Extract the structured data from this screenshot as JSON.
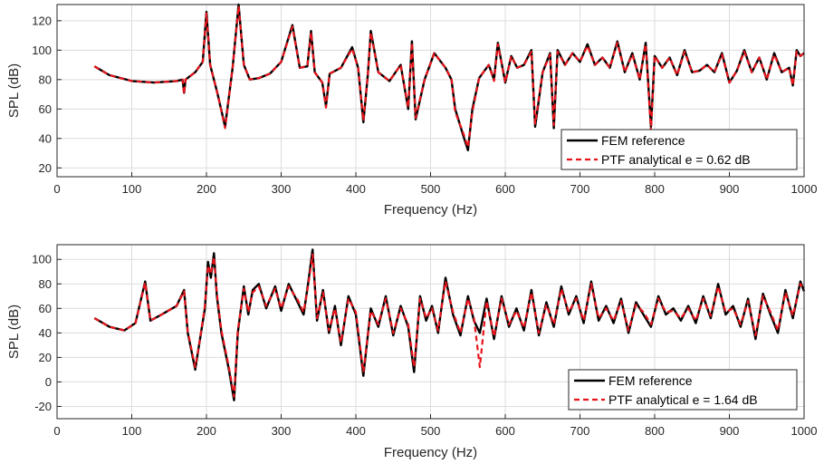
{
  "chart_data": [
    {
      "type": "line",
      "xlabel": "Frequency (Hz)",
      "ylabel": "SPL (dB)",
      "xlim": [
        0,
        1000
      ],
      "ylim": [
        14,
        131
      ],
      "xticks": [
        0,
        100,
        200,
        300,
        400,
        500,
        600,
        700,
        800,
        900,
        1000
      ],
      "yticks": [
        20,
        40,
        60,
        80,
        100,
        120
      ],
      "grid": true,
      "legend_position": "bottom-right",
      "colors": {
        "reference": "#000000",
        "analytical": "#e8141b"
      },
      "series": [
        {
          "name": "FEM reference",
          "style": "solid",
          "x": [
            50,
            70,
            100,
            130,
            160,
            168,
            170,
            172,
            185,
            195,
            200,
            205,
            215,
            225,
            235,
            243,
            250,
            258,
            270,
            285,
            300,
            315,
            325,
            335,
            340,
            345,
            355,
            360,
            365,
            380,
            395,
            403,
            410,
            416,
            420,
            430,
            445,
            460,
            470,
            475,
            480,
            492,
            505,
            520,
            528,
            533,
            545,
            550,
            556,
            565,
            578,
            585,
            590,
            600,
            608,
            616,
            625,
            635,
            640,
            650,
            660,
            665,
            670,
            680,
            690,
            700,
            710,
            720,
            730,
            740,
            750,
            760,
            770,
            780,
            788,
            795,
            800,
            810,
            820,
            830,
            840,
            850,
            860,
            870,
            880,
            890,
            900,
            910,
            920,
            930,
            940,
            950,
            960,
            970,
            980,
            985,
            990,
            995,
            1000
          ],
          "y": [
            89,
            83,
            79,
            78,
            79,
            80,
            71,
            80,
            85,
            92,
            126,
            90,
            70,
            48,
            88,
            131,
            90,
            80,
            81,
            84,
            92,
            117,
            88,
            89,
            113,
            85,
            78,
            62,
            84,
            88,
            102,
            88,
            51,
            83,
            113,
            85,
            79,
            90,
            60,
            106,
            53,
            80,
            98,
            88,
            80,
            60,
            40,
            32,
            60,
            81,
            90,
            80,
            105,
            78,
            96,
            88,
            90,
            100,
            48,
            85,
            98,
            47,
            100,
            90,
            98,
            92,
            104,
            90,
            95,
            88,
            106,
            85,
            98,
            80,
            105,
            48,
            96,
            88,
            95,
            83,
            100,
            85,
            86,
            90,
            85,
            98,
            78,
            86,
            100,
            85,
            95,
            80,
            98,
            85,
            88,
            76,
            100,
            96,
            98
          ]
        },
        {
          "name": "PTF analytical e = 0.62  dB",
          "style": "dashed",
          "x": [
            50,
            70,
            100,
            130,
            160,
            168,
            170,
            172,
            185,
            195,
            200,
            205,
            215,
            225,
            235,
            243,
            250,
            258,
            270,
            285,
            300,
            315,
            325,
            335,
            340,
            345,
            355,
            360,
            365,
            380,
            395,
            403,
            410,
            416,
            420,
            430,
            445,
            460,
            470,
            475,
            480,
            492,
            505,
            520,
            528,
            533,
            545,
            550,
            556,
            565,
            578,
            585,
            590,
            600,
            608,
            616,
            625,
            635,
            640,
            650,
            660,
            665,
            670,
            680,
            690,
            700,
            710,
            720,
            730,
            740,
            750,
            760,
            770,
            780,
            788,
            795,
            800,
            810,
            820,
            830,
            840,
            850,
            860,
            870,
            880,
            890,
            900,
            910,
            920,
            930,
            940,
            950,
            960,
            970,
            980,
            985,
            990,
            995,
            1000
          ],
          "y": [
            89,
            83,
            79,
            78,
            79,
            80,
            70,
            80,
            85,
            92,
            125,
            90,
            70,
            47,
            88,
            130,
            90,
            80,
            81,
            84,
            92,
            116,
            88,
            89,
            112,
            85,
            78,
            61,
            84,
            88,
            101,
            88,
            52,
            83,
            112,
            85,
            79,
            90,
            61,
            105,
            54,
            80,
            98,
            88,
            80,
            58,
            42,
            34,
            58,
            81,
            90,
            79,
            104,
            78,
            96,
            88,
            90,
            99,
            50,
            85,
            97,
            49,
            99,
            90,
            98,
            92,
            103,
            90,
            95,
            88,
            105,
            85,
            97,
            80,
            104,
            45,
            96,
            88,
            95,
            83,
            99,
            85,
            86,
            90,
            85,
            97,
            78,
            86,
            99,
            85,
            95,
            80,
            97,
            85,
            88,
            76,
            99,
            96,
            98
          ]
        }
      ]
    },
    {
      "type": "line",
      "xlabel": "Frequency (Hz)",
      "ylabel": "SPL (dB)",
      "xlim": [
        0,
        1000
      ],
      "ylim": [
        -30,
        112
      ],
      "xticks": [
        0,
        100,
        200,
        300,
        400,
        500,
        600,
        700,
        800,
        900,
        1000
      ],
      "yticks": [
        -20,
        0,
        20,
        40,
        60,
        80,
        100
      ],
      "grid": true,
      "legend_position": "bottom-right",
      "colors": {
        "reference": "#000000",
        "analytical": "#e8141b"
      },
      "series": [
        {
          "name": "FEM reference",
          "style": "solid",
          "x": [
            50,
            70,
            90,
            105,
            118,
            125,
            140,
            160,
            170,
            175,
            185,
            190,
            198,
            202,
            206,
            210,
            214,
            220,
            230,
            237,
            242,
            250,
            256,
            262,
            270,
            280,
            292,
            300,
            310,
            322,
            330,
            336,
            342,
            348,
            356,
            364,
            372,
            380,
            390,
            400,
            410,
            420,
            430,
            440,
            450,
            460,
            470,
            478,
            486,
            494,
            502,
            510,
            520,
            530,
            540,
            550,
            558,
            566,
            575,
            585,
            595,
            605,
            615,
            625,
            635,
            645,
            655,
            665,
            675,
            685,
            695,
            705,
            715,
            725,
            735,
            745,
            755,
            765,
            775,
            785,
            795,
            805,
            815,
            825,
            835,
            845,
            855,
            865,
            875,
            885,
            895,
            905,
            915,
            925,
            935,
            945,
            955,
            965,
            975,
            985,
            995,
            1000
          ],
          "y": [
            52,
            45,
            42,
            48,
            82,
            50,
            55,
            62,
            75,
            40,
            10,
            30,
            60,
            98,
            85,
            105,
            70,
            40,
            10,
            -15,
            40,
            78,
            55,
            75,
            80,
            60,
            78,
            58,
            80,
            65,
            55,
            80,
            108,
            50,
            75,
            40,
            62,
            30,
            70,
            55,
            5,
            60,
            45,
            70,
            38,
            62,
            45,
            8,
            70,
            50,
            62,
            40,
            85,
            55,
            38,
            70,
            50,
            40,
            68,
            35,
            70,
            45,
            60,
            42,
            75,
            38,
            65,
            45,
            78,
            55,
            70,
            48,
            82,
            50,
            62,
            48,
            68,
            40,
            65,
            55,
            45,
            70,
            55,
            60,
            50,
            62,
            48,
            70,
            52,
            80,
            55,
            62,
            45,
            68,
            35,
            72,
            55,
            40,
            75,
            52,
            82,
            74
          ]
        },
        {
          "name": "PTF analytical e = 1.64 dB",
          "style": "dashed",
          "x": [
            50,
            70,
            90,
            105,
            118,
            125,
            140,
            160,
            170,
            175,
            185,
            190,
            198,
            202,
            206,
            210,
            214,
            220,
            230,
            237,
            242,
            250,
            256,
            262,
            270,
            280,
            292,
            300,
            310,
            322,
            330,
            336,
            342,
            348,
            356,
            364,
            372,
            380,
            390,
            400,
            410,
            420,
            430,
            440,
            450,
            460,
            470,
            478,
            486,
            494,
            502,
            510,
            520,
            530,
            540,
            550,
            558,
            566,
            575,
            585,
            595,
            605,
            615,
            625,
            635,
            645,
            655,
            665,
            675,
            685,
            695,
            705,
            715,
            725,
            735,
            745,
            755,
            765,
            775,
            785,
            795,
            805,
            815,
            825,
            835,
            845,
            855,
            865,
            875,
            885,
            895,
            905,
            915,
            925,
            935,
            945,
            955,
            965,
            975,
            985,
            995,
            1000
          ],
          "y": [
            52,
            45,
            42,
            48,
            81,
            50,
            55,
            62,
            74,
            41,
            12,
            30,
            62,
            95,
            88,
            102,
            72,
            42,
            12,
            -12,
            42,
            76,
            57,
            73,
            78,
            62,
            76,
            60,
            78,
            67,
            57,
            78,
            104,
            52,
            73,
            42,
            60,
            32,
            68,
            57,
            8,
            58,
            47,
            68,
            40,
            60,
            47,
            12,
            68,
            52,
            60,
            42,
            82,
            57,
            40,
            68,
            52,
            12,
            66,
            37,
            68,
            47,
            58,
            44,
            73,
            40,
            63,
            47,
            76,
            57,
            68,
            50,
            80,
            52,
            60,
            50,
            66,
            42,
            63,
            57,
            47,
            68,
            57,
            58,
            52,
            60,
            50,
            68,
            54,
            78,
            57,
            60,
            47,
            66,
            38,
            70,
            57,
            42,
            73,
            54,
            80,
            75
          ]
        }
      ]
    }
  ]
}
